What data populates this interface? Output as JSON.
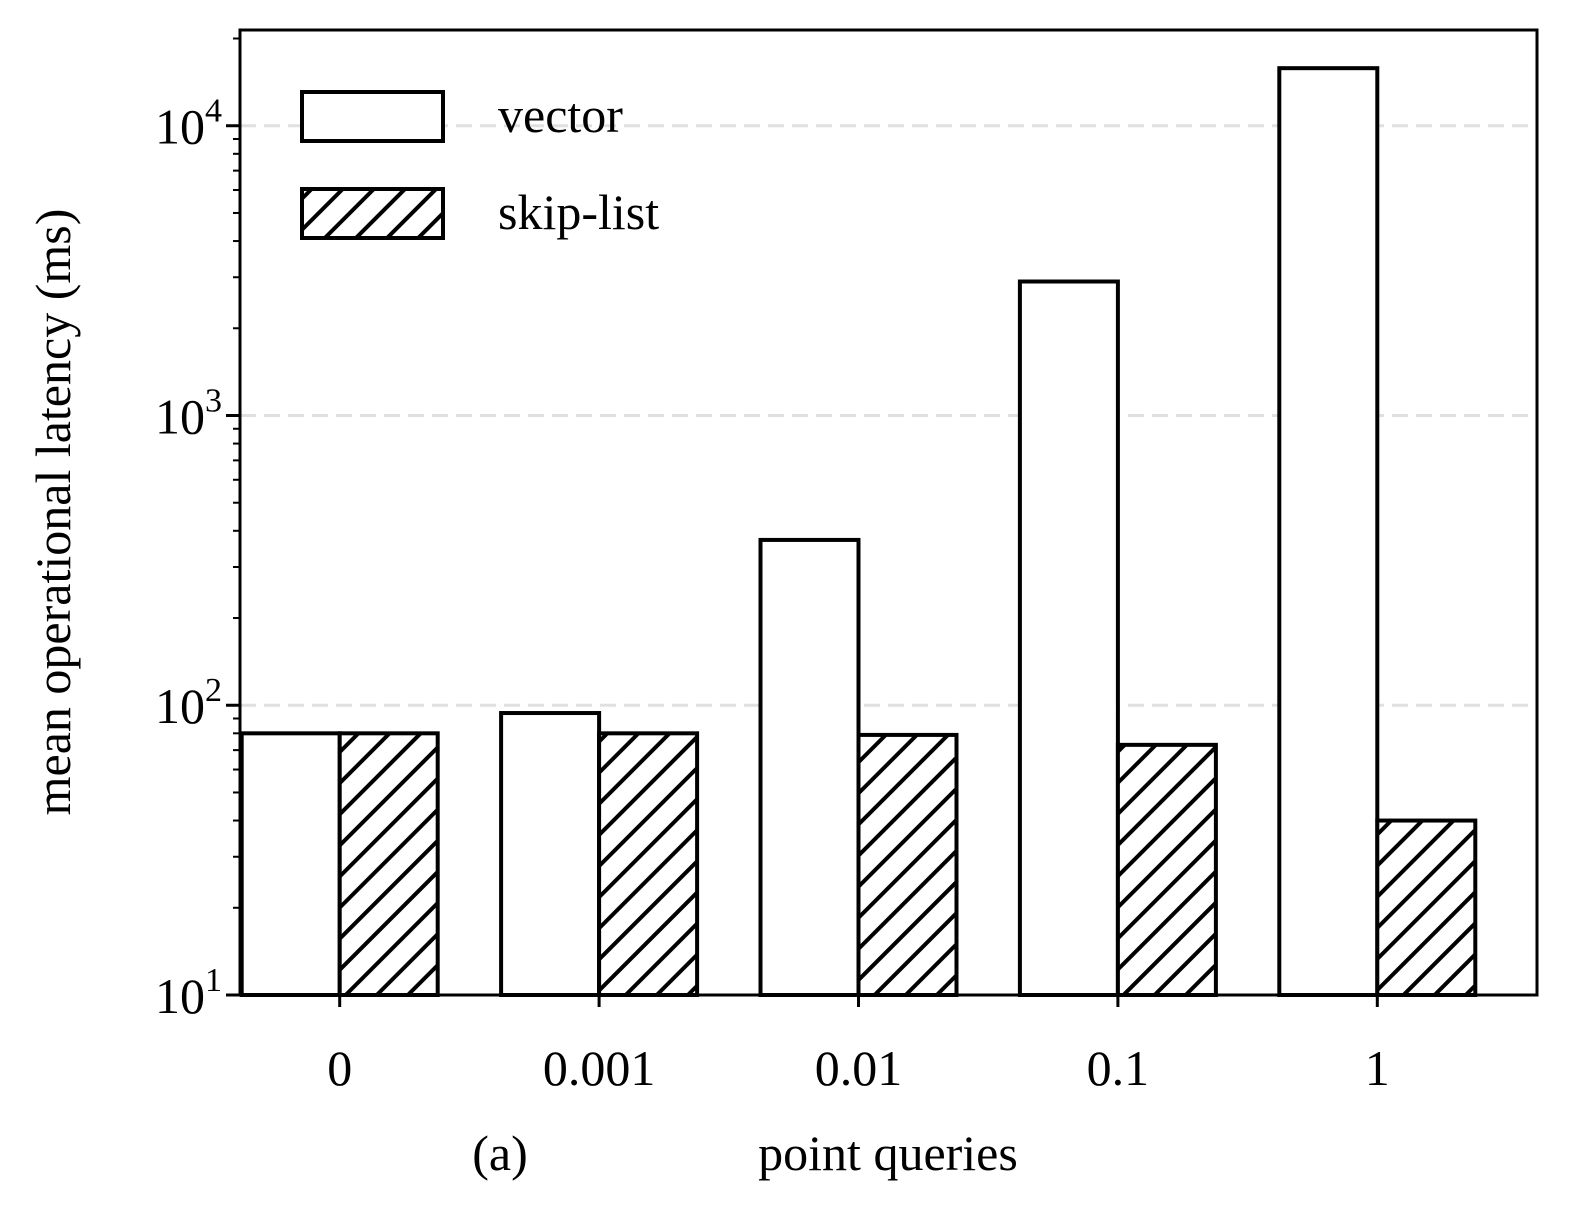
{
  "chart_data": {
    "type": "bar",
    "title": "",
    "panel_label": "(a)",
    "xlabel": "point queries",
    "ylabel": "mean operational latency (ms)",
    "categories": [
      "0",
      "0.001",
      "0.01",
      "0.1",
      "1"
    ],
    "yscale": "log",
    "ylim": [
      10,
      21400
    ],
    "yticks": [
      {
        "value": 10,
        "base": "10",
        "exp": "1"
      },
      {
        "value": 100,
        "base": "10",
        "exp": "2"
      },
      {
        "value": 1000,
        "base": "10",
        "exp": "3"
      },
      {
        "value": 10000,
        "base": "10",
        "exp": "4"
      }
    ],
    "grid": "horizontal dashed at major ticks",
    "legend_placement": "top-left",
    "series": [
      {
        "name": "vector",
        "fill": "#ffffff",
        "hatch": "none",
        "values": [
          80,
          94,
          372,
          2900,
          15800
        ]
      },
      {
        "name": "skip-list",
        "fill": "#ffffff",
        "hatch": "diagonal",
        "values": [
          80,
          80,
          79,
          73,
          40
        ]
      }
    ]
  }
}
